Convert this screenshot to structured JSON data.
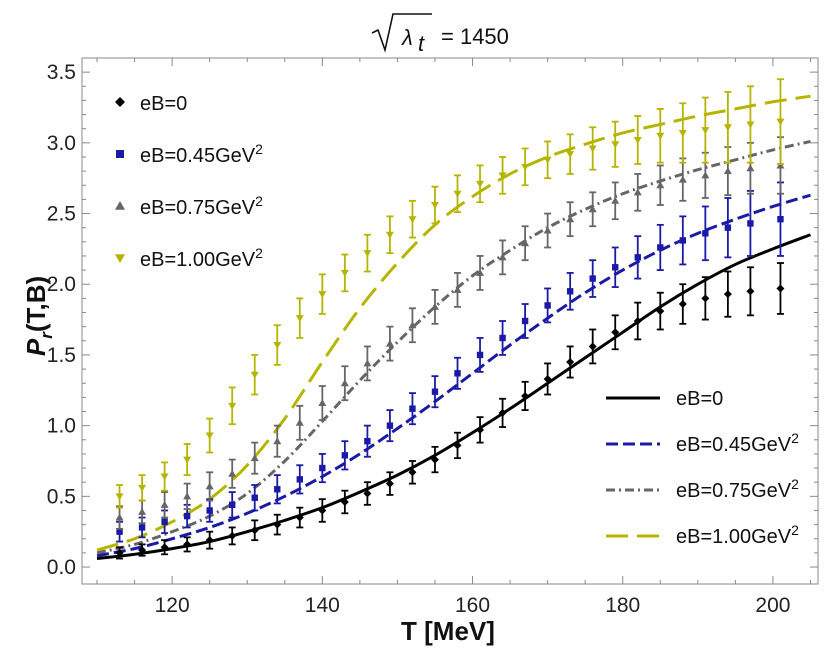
{
  "chart_data": {
    "type": "scatter",
    "title": {
      "radicand": "λ",
      "subscript": "t",
      "rhs": "= 1450"
    },
    "xlabel": "T [MeV]",
    "ylabel": {
      "main": "P",
      "subscript": "r",
      "args": "(T,B)"
    },
    "xlim": [
      108,
      206
    ],
    "ylim": [
      -0.12,
      3.6
    ],
    "xticks": [
      120,
      140,
      160,
      180,
      200
    ],
    "xtick_labels": [
      "120",
      "140",
      "160",
      "180",
      "200"
    ],
    "yticks": [
      0,
      0.5,
      1,
      1.5,
      2,
      2.5,
      3,
      3.5
    ],
    "ytick_labels": [
      "0.0",
      "0.5",
      "1.0",
      "1.5",
      "2.0",
      "2.5",
      "3.0",
      "3.5"
    ],
    "point_legend": [
      {
        "label": "eB=0",
        "sup": "",
        "color": "#000000",
        "marker": "diamond"
      },
      {
        "label": "eB=0.45GeV",
        "sup": "2",
        "color": "#1a1aa6",
        "marker": "square"
      },
      {
        "label": "eB=0.75GeV",
        "sup": "2",
        "color": "#666666",
        "marker": "triangle-up"
      },
      {
        "label": "eB=1.00GeV",
        "sup": "2",
        "color": "#b5b500",
        "marker": "triangle-down"
      }
    ],
    "line_legend": [
      {
        "label": "eB=0",
        "sup": "",
        "color": "#000000",
        "dash": "solid"
      },
      {
        "label": "eB=0.45GeV",
        "sup": "2",
        "color": "#1a1aa6",
        "dash": "dashed"
      },
      {
        "label": "eB=0.75GeV",
        "sup": "2",
        "color": "#666666",
        "dash": "dashdot"
      },
      {
        "label": "eB=1.00GeV",
        "sup": "2",
        "color": "#b5b500",
        "dash": "longdash"
      }
    ],
    "point_series": [
      {
        "name": "eB=0 (lattice)",
        "color": "#000000",
        "marker": "diamond",
        "x": [
          113,
          116,
          119,
          122,
          125,
          128,
          131,
          134,
          137,
          140,
          143,
          146,
          149,
          152,
          155,
          158,
          161,
          164,
          167,
          170,
          173,
          176,
          179,
          182,
          185,
          188,
          191,
          194,
          197,
          201
        ],
        "y": [
          0.1,
          0.12,
          0.14,
          0.16,
          0.19,
          0.22,
          0.26,
          0.3,
          0.35,
          0.4,
          0.46,
          0.52,
          0.59,
          0.67,
          0.76,
          0.86,
          0.97,
          1.09,
          1.21,
          1.33,
          1.45,
          1.56,
          1.66,
          1.74,
          1.81,
          1.86,
          1.9,
          1.93,
          1.95,
          1.97
        ],
        "err": [
          0.04,
          0.04,
          0.05,
          0.05,
          0.06,
          0.06,
          0.07,
          0.07,
          0.07,
          0.08,
          0.08,
          0.08,
          0.08,
          0.08,
          0.09,
          0.09,
          0.09,
          0.1,
          0.1,
          0.11,
          0.11,
          0.12,
          0.12,
          0.13,
          0.13,
          0.14,
          0.15,
          0.16,
          0.17,
          0.18
        ]
      },
      {
        "name": "eB=0.45GeV^2 (lattice)",
        "color": "#1a1aa6",
        "marker": "square",
        "x": [
          113,
          116,
          119,
          122,
          125,
          128,
          131,
          134,
          137,
          140,
          143,
          146,
          149,
          152,
          155,
          158,
          161,
          164,
          167,
          170,
          173,
          176,
          179,
          182,
          185,
          188,
          191,
          194,
          197,
          201
        ],
        "y": [
          0.25,
          0.28,
          0.32,
          0.36,
          0.4,
          0.44,
          0.49,
          0.55,
          0.62,
          0.7,
          0.79,
          0.89,
          1.0,
          1.12,
          1.24,
          1.37,
          1.5,
          1.62,
          1.74,
          1.85,
          1.95,
          2.04,
          2.12,
          2.19,
          2.26,
          2.31,
          2.36,
          2.4,
          2.43,
          2.46
        ],
        "err": [
          0.07,
          0.07,
          0.08,
          0.08,
          0.08,
          0.09,
          0.09,
          0.1,
          0.1,
          0.1,
          0.1,
          0.11,
          0.11,
          0.11,
          0.11,
          0.11,
          0.12,
          0.12,
          0.12,
          0.12,
          0.13,
          0.13,
          0.14,
          0.15,
          0.16,
          0.17,
          0.19,
          0.21,
          0.23,
          0.26
        ]
      },
      {
        "name": "eB=0.75GeV^2 (lattice)",
        "color": "#666666",
        "marker": "triangle-up",
        "x": [
          113,
          116,
          119,
          122,
          125,
          128,
          131,
          134,
          137,
          140,
          143,
          146,
          149,
          152,
          155,
          158,
          161,
          164,
          167,
          170,
          173,
          176,
          179,
          182,
          185,
          188,
          191,
          194,
          197,
          201
        ],
        "y": [
          0.35,
          0.39,
          0.44,
          0.5,
          0.57,
          0.66,
          0.77,
          0.89,
          1.02,
          1.16,
          1.3,
          1.44,
          1.58,
          1.71,
          1.84,
          1.96,
          2.08,
          2.19,
          2.29,
          2.38,
          2.46,
          2.53,
          2.59,
          2.65,
          2.7,
          2.74,
          2.77,
          2.8,
          2.82,
          2.84
        ],
        "err": [
          0.08,
          0.08,
          0.09,
          0.09,
          0.1,
          0.1,
          0.11,
          0.11,
          0.12,
          0.12,
          0.12,
          0.12,
          0.12,
          0.12,
          0.12,
          0.12,
          0.12,
          0.12,
          0.12,
          0.12,
          0.12,
          0.12,
          0.13,
          0.13,
          0.14,
          0.15,
          0.16,
          0.17,
          0.18,
          0.2
        ]
      },
      {
        "name": "eB=1.00GeV^2 (lattice)",
        "color": "#b5b500",
        "marker": "triangle-down",
        "x": [
          113,
          116,
          119,
          122,
          125,
          128,
          131,
          134,
          137,
          140,
          143,
          146,
          149,
          152,
          155,
          158,
          161,
          164,
          167,
          170,
          173,
          176,
          179,
          182,
          185,
          188,
          191,
          194,
          197,
          201
        ],
        "y": [
          0.5,
          0.56,
          0.64,
          0.76,
          0.93,
          1.14,
          1.36,
          1.57,
          1.76,
          1.93,
          2.08,
          2.22,
          2.35,
          2.46,
          2.56,
          2.64,
          2.71,
          2.77,
          2.83,
          2.88,
          2.92,
          2.96,
          2.99,
          3.02,
          3.05,
          3.07,
          3.09,
          3.11,
          3.13,
          3.15
        ],
        "err": [
          0.08,
          0.09,
          0.1,
          0.11,
          0.12,
          0.13,
          0.14,
          0.14,
          0.14,
          0.14,
          0.13,
          0.13,
          0.13,
          0.13,
          0.13,
          0.13,
          0.13,
          0.13,
          0.13,
          0.13,
          0.14,
          0.15,
          0.16,
          0.17,
          0.19,
          0.21,
          0.23,
          0.25,
          0.27,
          0.3
        ]
      }
    ],
    "line_series": [
      {
        "name": "eB=0 (model)",
        "color": "#000000",
        "dash": "solid",
        "x": [
          110,
          115,
          120,
          125,
          130,
          135,
          140,
          145,
          150,
          155,
          160,
          165,
          170,
          175,
          180,
          185,
          190,
          195,
          200,
          205
        ],
        "y": [
          0.06,
          0.09,
          0.13,
          0.18,
          0.25,
          0.33,
          0.42,
          0.53,
          0.65,
          0.79,
          0.95,
          1.12,
          1.3,
          1.48,
          1.66,
          1.84,
          2.0,
          2.14,
          2.25,
          2.35
        ]
      },
      {
        "name": "eB=0.45GeV^2 (model)",
        "color": "#1a1aa6",
        "dash": "dashed",
        "x": [
          110,
          115,
          120,
          125,
          130,
          135,
          140,
          145,
          150,
          155,
          160,
          165,
          170,
          175,
          180,
          185,
          190,
          195,
          200,
          205
        ],
        "y": [
          0.08,
          0.13,
          0.2,
          0.28,
          0.38,
          0.5,
          0.64,
          0.8,
          0.98,
          1.17,
          1.37,
          1.57,
          1.76,
          1.94,
          2.1,
          2.24,
          2.36,
          2.46,
          2.55,
          2.63
        ]
      },
      {
        "name": "eB=0.75GeV^2 (model)",
        "color": "#666666",
        "dash": "dashdot",
        "x": [
          110,
          115,
          120,
          125,
          130,
          135,
          140,
          145,
          150,
          155,
          160,
          165,
          170,
          175,
          180,
          185,
          190,
          195,
          200,
          205
        ],
        "y": [
          0.1,
          0.16,
          0.25,
          0.36,
          0.52,
          0.75,
          1.03,
          1.32,
          1.59,
          1.84,
          2.06,
          2.24,
          2.4,
          2.53,
          2.64,
          2.73,
          2.81,
          2.88,
          2.95,
          3.01
        ]
      },
      {
        "name": "eB=1.00GeV^2 (model)",
        "color": "#b5b500",
        "dash": "longdash",
        "x": [
          110,
          115,
          120,
          125,
          130,
          135,
          140,
          145,
          150,
          155,
          160,
          165,
          170,
          175,
          180,
          185,
          190,
          195,
          200,
          205
        ],
        "y": [
          0.12,
          0.2,
          0.32,
          0.48,
          0.72,
          1.05,
          1.45,
          1.83,
          2.15,
          2.42,
          2.62,
          2.78,
          2.9,
          2.99,
          3.07,
          3.13,
          3.19,
          3.24,
          3.29,
          3.33
        ]
      }
    ]
  }
}
